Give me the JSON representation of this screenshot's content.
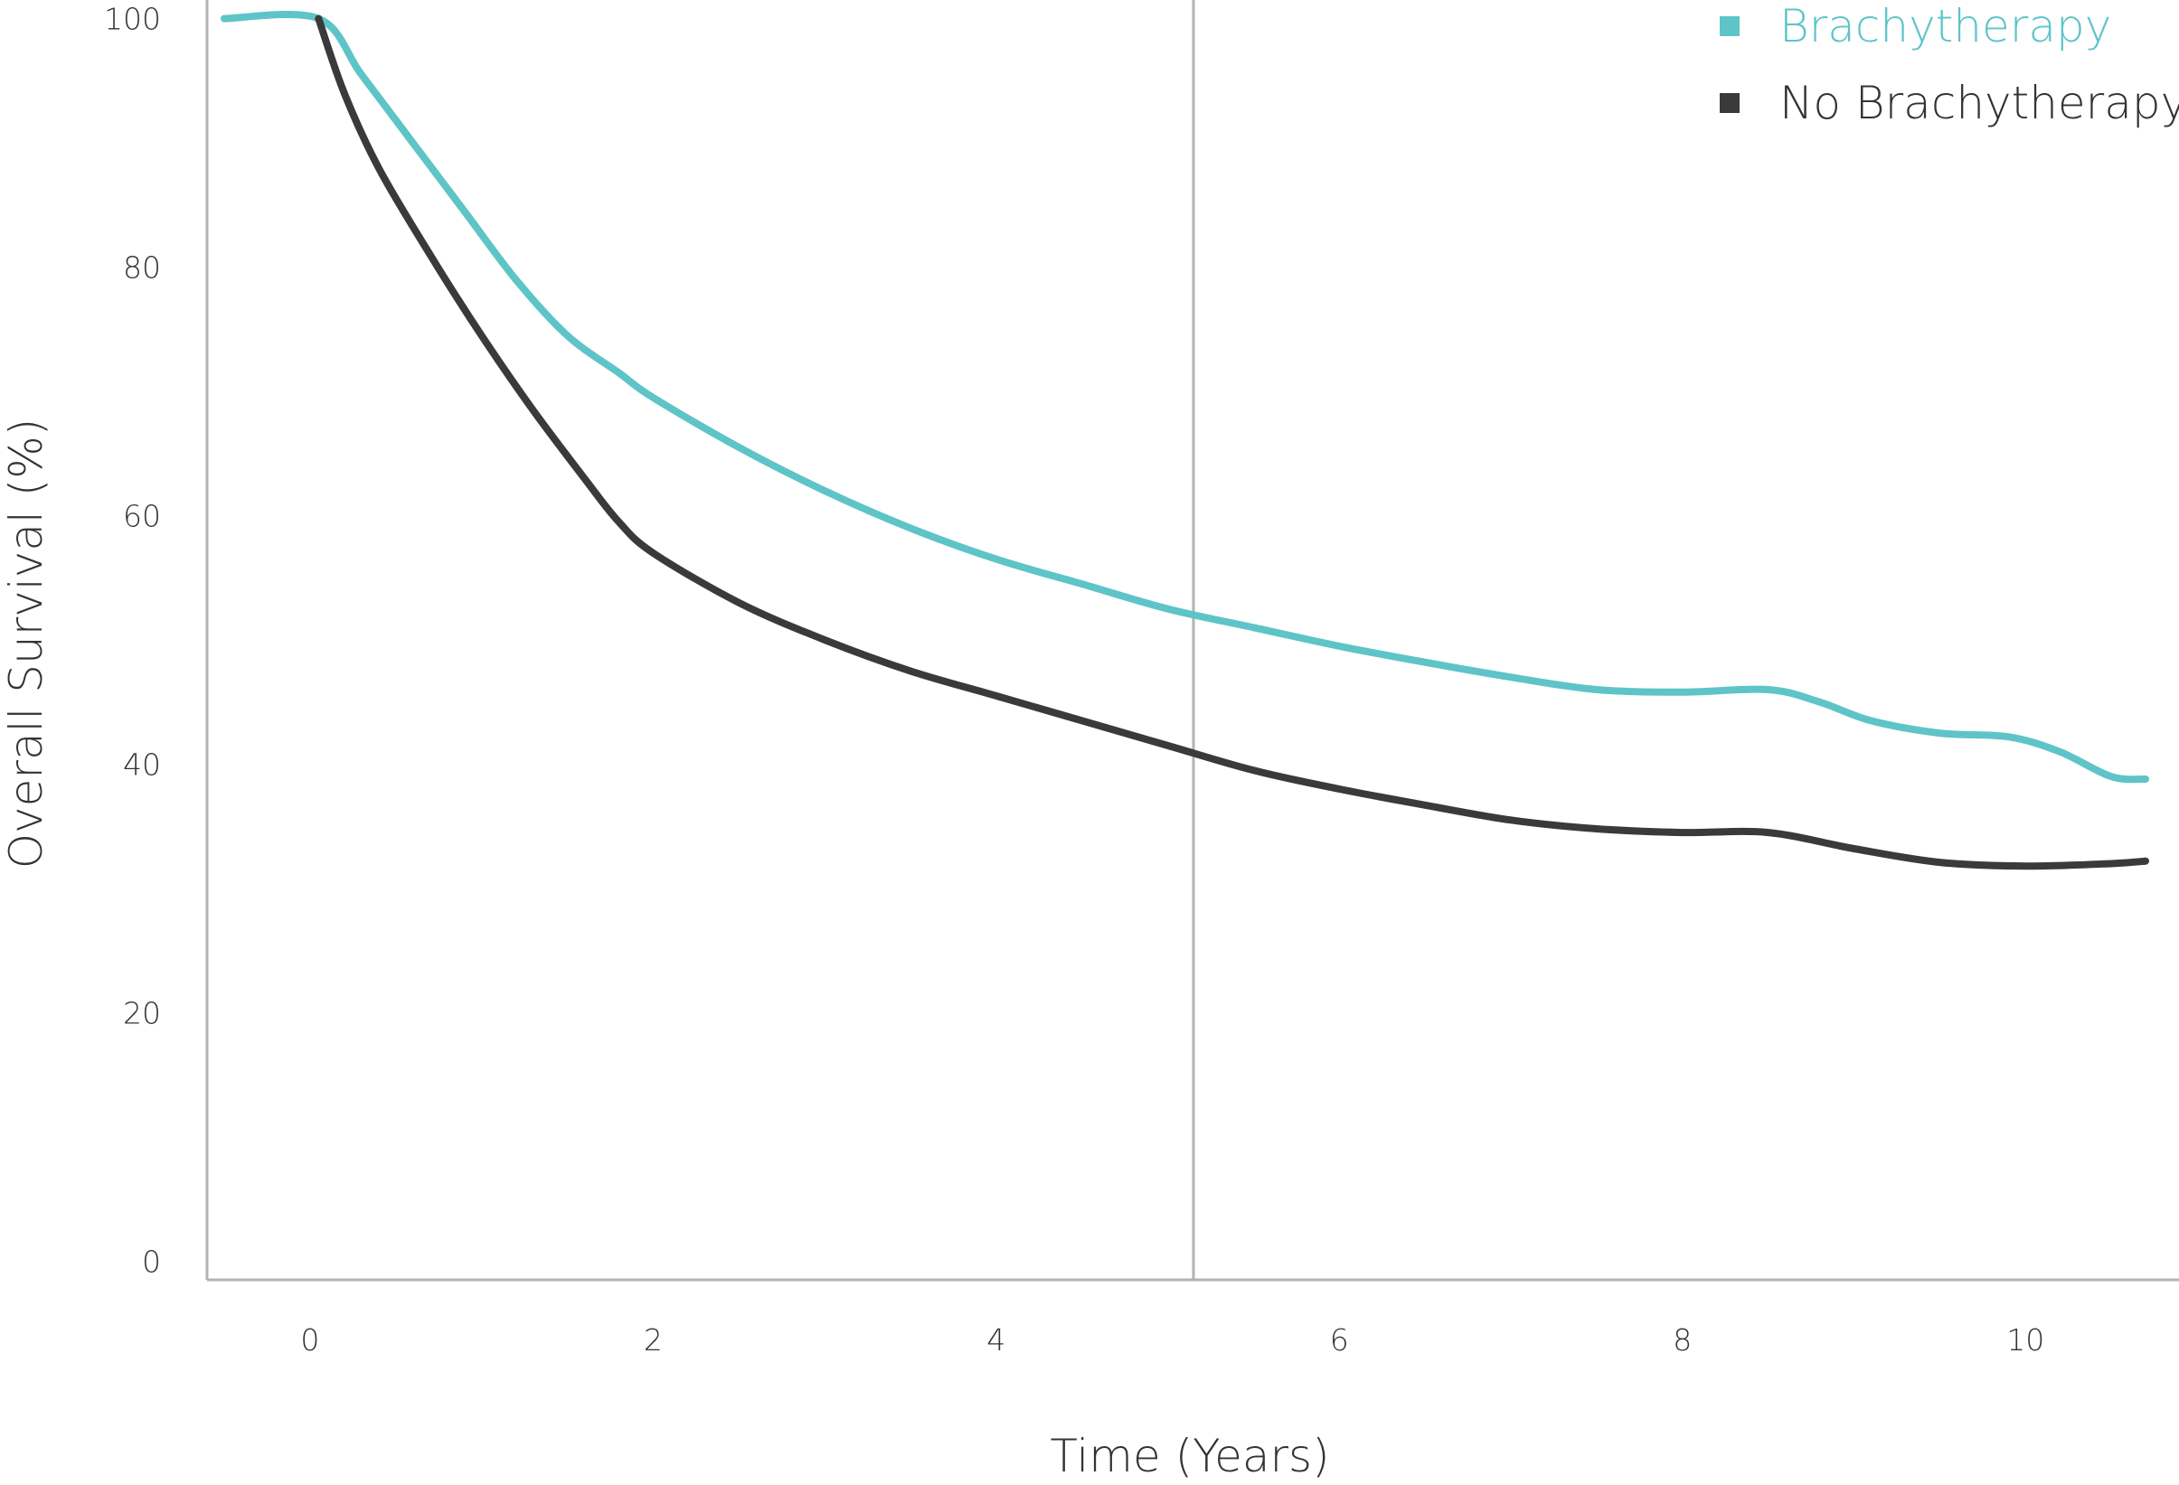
{
  "chart_data": {
    "type": "line",
    "xlabel": "Time (Years)",
    "ylabel": "Overall Survival (%)",
    "xlim": [
      -0.6,
      10.8
    ],
    "ylim": [
      -1.5,
      101.5
    ],
    "x_ticks": [
      0,
      2,
      4,
      6,
      8,
      10
    ],
    "y_ticks": [
      0,
      20,
      40,
      60,
      80,
      100
    ],
    "grid": false,
    "reference_line_x": 5.15,
    "legend_position": "top-right",
    "series": [
      {
        "name": "Brachytherapy",
        "color": "#5ec4c7",
        "points": [
          [
            -0.5,
            100
          ],
          [
            0.05,
            100
          ],
          [
            0.3,
            95.5
          ],
          [
            0.6,
            90
          ],
          [
            0.9,
            84.5
          ],
          [
            1.2,
            79
          ],
          [
            1.5,
            74.5
          ],
          [
            1.8,
            71.5
          ],
          [
            2.0,
            69.5
          ],
          [
            2.5,
            65.5
          ],
          [
            3.0,
            62
          ],
          [
            3.5,
            59
          ],
          [
            4.0,
            56.5
          ],
          [
            4.5,
            54.5
          ],
          [
            5.0,
            52.5
          ],
          [
            5.5,
            51
          ],
          [
            6.0,
            49.5
          ],
          [
            6.5,
            48.2
          ],
          [
            7.0,
            47
          ],
          [
            7.5,
            46
          ],
          [
            8.0,
            45.8
          ],
          [
            8.5,
            46
          ],
          [
            8.8,
            45
          ],
          [
            9.1,
            43.5
          ],
          [
            9.5,
            42.5
          ],
          [
            9.9,
            42.2
          ],
          [
            10.2,
            41
          ],
          [
            10.5,
            39
          ],
          [
            10.7,
            38.8
          ]
        ]
      },
      {
        "name": "No Brachytherapy",
        "color": "#3a3a3c",
        "points": [
          [
            0.05,
            100
          ],
          [
            0.2,
            94
          ],
          [
            0.4,
            88
          ],
          [
            0.7,
            81
          ],
          [
            1.0,
            74.5
          ],
          [
            1.3,
            68.5
          ],
          [
            1.6,
            63
          ],
          [
            1.8,
            59.5
          ],
          [
            2.0,
            57
          ],
          [
            2.5,
            53
          ],
          [
            3.0,
            50
          ],
          [
            3.5,
            47.5
          ],
          [
            4.0,
            45.5
          ],
          [
            4.5,
            43.5
          ],
          [
            5.0,
            41.5
          ],
          [
            5.5,
            39.5
          ],
          [
            6.0,
            38
          ],
          [
            6.5,
            36.7
          ],
          [
            7.0,
            35.5
          ],
          [
            7.5,
            34.8
          ],
          [
            8.0,
            34.5
          ],
          [
            8.5,
            34.5
          ],
          [
            9.0,
            33.2
          ],
          [
            9.5,
            32.1
          ],
          [
            10.0,
            31.8
          ],
          [
            10.5,
            32
          ],
          [
            10.7,
            32.2
          ]
        ]
      }
    ]
  }
}
